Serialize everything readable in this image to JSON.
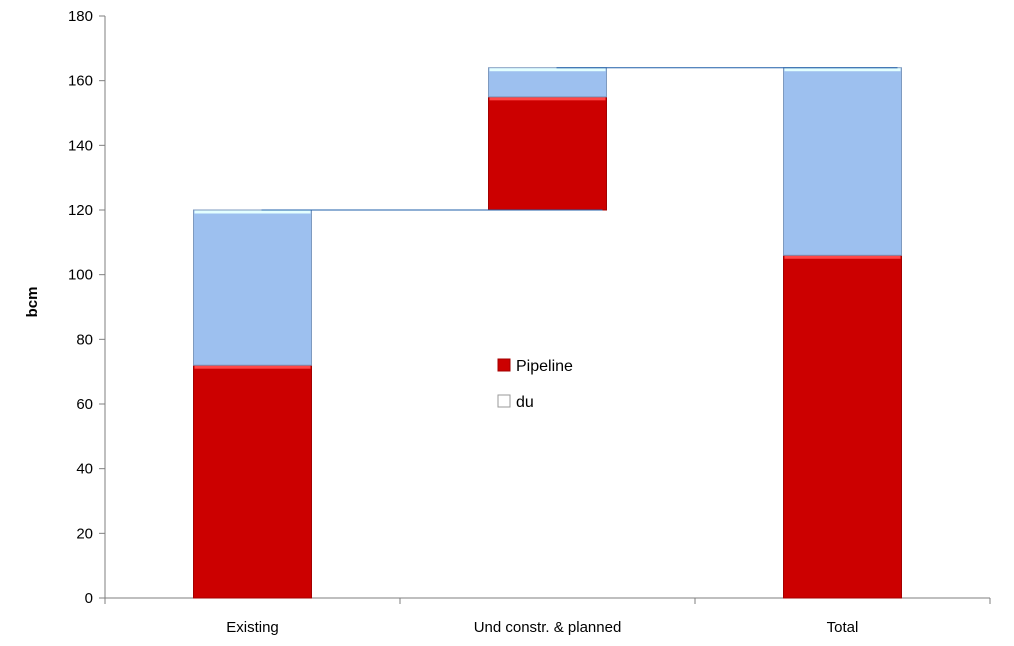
{
  "chart_data": {
    "type": "bar",
    "subtype": "waterfall-stacked",
    "categories": [
      "Existing",
      "Und constr. & planned",
      "Total"
    ],
    "ylabel": "bcm",
    "xlabel": "",
    "ylim": [
      0,
      180
    ],
    "yticks": [
      0,
      20,
      40,
      60,
      80,
      100,
      120,
      140,
      160,
      180
    ],
    "grid": false,
    "legend_position": "center",
    "series": [
      {
        "name": "Pipeline",
        "color": "#cc0000",
        "base": [
          0,
          120,
          0
        ],
        "values": [
          72,
          35,
          106
        ]
      },
      {
        "name": "",
        "color": "#9dc0ef",
        "values": [
          48,
          9,
          58
        ]
      }
    ],
    "legend": [
      {
        "name": "Pipeline",
        "color": "#cc0000"
      },
      {
        "name": "du",
        "color": "#ffffff"
      }
    ],
    "connector_lines": [
      {
        "from": 0,
        "to": 1,
        "y": 120
      },
      {
        "from": 1,
        "to": 2,
        "y": 164
      }
    ],
    "colors": {
      "connector": "#1f5fa8",
      "axis": "#7f7f7f"
    }
  }
}
